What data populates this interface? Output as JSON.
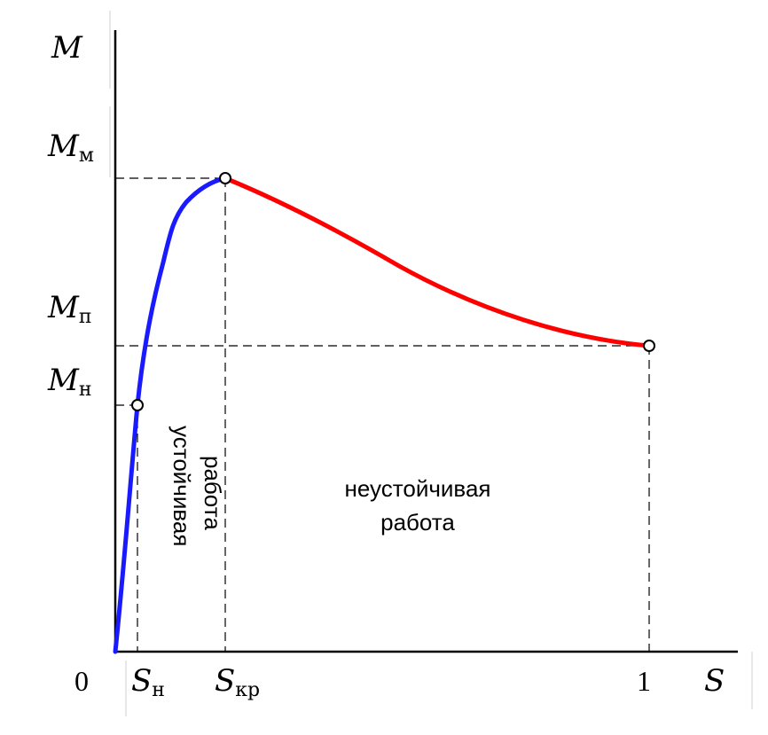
{
  "axes": {
    "y_label": "M",
    "x_label": "S",
    "origin_label": "0",
    "x_tick_one": "1"
  },
  "y_ticks": {
    "m_max": {
      "main": "M",
      "sub": "м"
    },
    "m_start": {
      "main": "M",
      "sub": "п"
    },
    "m_nom": {
      "main": "M",
      "sub": "н"
    }
  },
  "x_ticks": {
    "s_nom": {
      "main": "S",
      "sub": "н"
    },
    "s_crit": {
      "main": "S",
      "sub": "кр"
    }
  },
  "regions": {
    "stable_line1": "устойчивая",
    "stable_line2": "работа",
    "unstable_line1": "неустойчивая",
    "unstable_line2": "работа"
  },
  "colors": {
    "stable_curve": "#1a1aff",
    "unstable_curve": "#ff0000",
    "axis": "#000000"
  }
}
